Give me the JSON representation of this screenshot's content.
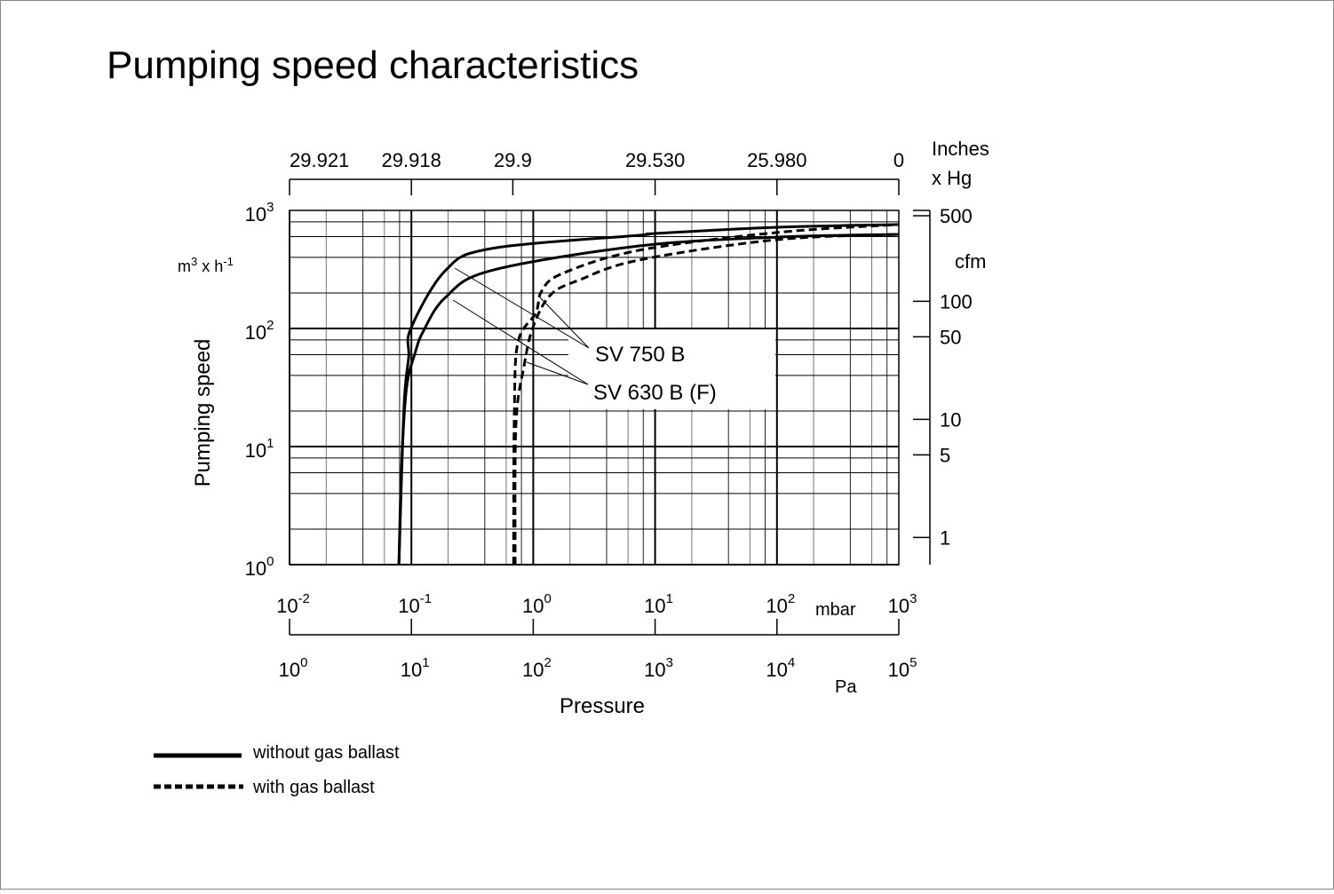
{
  "chart_data": {
    "type": "line",
    "title": "Pumping speed characteristics",
    "xscale": "log",
    "yscale": "log",
    "xlim_mbar": [
      0.01,
      1000
    ],
    "ylim": [
      1,
      1000
    ],
    "grid": true,
    "xlabel": "Pressure",
    "ylabel": "Pumping speed",
    "yunit": {
      "base": "m",
      "sup1": "3",
      "mid": " x h",
      "sup2": "-1"
    },
    "x_axis_mbar": {
      "unit": "mbar",
      "ticks": [
        {
          "base": "10",
          "exp": "-2"
        },
        {
          "base": "10",
          "exp": "-1"
        },
        {
          "base": "10",
          "exp": "0"
        },
        {
          "base": "10",
          "exp": "1"
        },
        {
          "base": "10",
          "exp": "2"
        },
        {
          "base": "10",
          "exp": "3"
        }
      ]
    },
    "x_axis_pa": {
      "unit": "Pa",
      "ticks": [
        {
          "base": "10",
          "exp": "0"
        },
        {
          "base": "10",
          "exp": "1"
        },
        {
          "base": "10",
          "exp": "2"
        },
        {
          "base": "10",
          "exp": "3"
        },
        {
          "base": "10",
          "exp": "4"
        },
        {
          "base": "10",
          "exp": "5"
        }
      ]
    },
    "x_axis_inhg": {
      "unit_line1": "Inches",
      "unit_line2": "x Hg",
      "ticks": [
        {
          "label": "29.921",
          "mbar": 0.01
        },
        {
          "label": "29.918",
          "mbar": 0.1
        },
        {
          "label": "29.9",
          "mbar": 0.68
        },
        {
          "label": "29.530",
          "mbar": 10
        },
        {
          "label": "25.980",
          "mbar": 100
        },
        {
          "label": "0",
          "mbar": 1000
        }
      ]
    },
    "y_axis": {
      "ticks": [
        {
          "base": "10",
          "exp": "0"
        },
        {
          "base": "10",
          "exp": "1"
        },
        {
          "base": "10",
          "exp": "2"
        },
        {
          "base": "10",
          "exp": "3"
        }
      ]
    },
    "y_axis_cfm": {
      "unit": "cfm",
      "ticks": [
        500,
        100,
        50,
        10,
        5,
        1
      ]
    },
    "series": [
      {
        "name": "SV 750 B",
        "style": "without gas ballast",
        "x": [
          0.079,
          0.087,
          0.095,
          0.099,
          0.19,
          0.45,
          7.4,
          10,
          100,
          1000
        ],
        "y": [
          1,
          21.8,
          57,
          100,
          309,
          475,
          616,
          638,
          720,
          760
        ]
      },
      {
        "name": "SV 630 B (F)",
        "style": "without gas ballast",
        "x": [
          0.079,
          0.083,
          0.091,
          0.107,
          0.126,
          0.19,
          0.45,
          7.4,
          100,
          1000
        ],
        "y": [
          1,
          6.8,
          30.7,
          61.6,
          96,
          183,
          309,
          500,
          594,
          627
        ]
      },
      {
        "name": "SV 750 B",
        "style": "with gas ballast",
        "x": [
          0.69,
          0.7,
          0.75,
          1.05,
          1.17,
          1.73,
          7.4,
          100,
          1000
        ],
        "y": [
          1,
          20,
          77,
          136,
          207,
          292,
          460,
          650,
          760
        ]
      },
      {
        "name": "SV 630 B (F)",
        "style": "with gas ballast",
        "x": [
          0.71,
          0.72,
          0.84,
          1.0,
          1.39,
          2.4,
          7.4,
          100,
          1000
        ],
        "y": [
          1,
          15,
          48,
          104,
          193,
          258,
          380,
          565,
          627
        ]
      }
    ],
    "annotations": [
      "SV 750 B",
      "SV 630 B (F)"
    ],
    "legend": {
      "placement": "bottom-left",
      "items": [
        {
          "label": "without gas ballast",
          "line": "solid"
        },
        {
          "label": "with gas ballast",
          "line": "dashed"
        }
      ]
    }
  }
}
